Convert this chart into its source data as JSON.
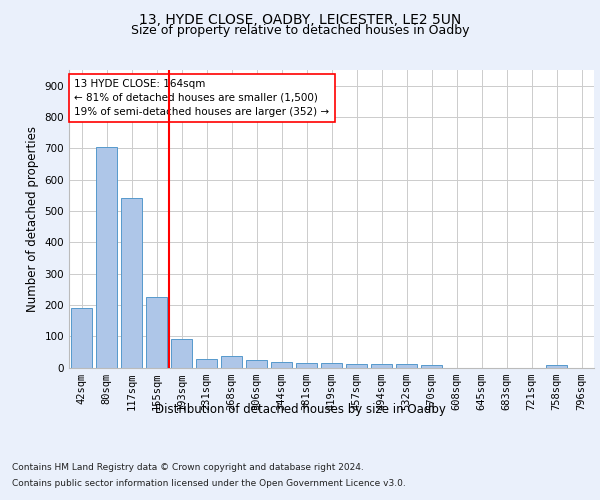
{
  "title": "13, HYDE CLOSE, OADBY, LEICESTER, LE2 5UN",
  "subtitle": "Size of property relative to detached houses in Oadby",
  "xlabel": "Distribution of detached houses by size in Oadby",
  "ylabel": "Number of detached properties",
  "categories": [
    "42sqm",
    "80sqm",
    "117sqm",
    "155sqm",
    "193sqm",
    "231sqm",
    "268sqm",
    "306sqm",
    "344sqm",
    "381sqm",
    "419sqm",
    "457sqm",
    "494sqm",
    "532sqm",
    "570sqm",
    "608sqm",
    "645sqm",
    "683sqm",
    "721sqm",
    "758sqm",
    "796sqm"
  ],
  "values": [
    190,
    705,
    540,
    225,
    90,
    28,
    37,
    24,
    16,
    14,
    14,
    11,
    10,
    10,
    7,
    0,
    0,
    0,
    0,
    9,
    0
  ],
  "bar_color": "#aec6e8",
  "bar_edge_color": "#5599cc",
  "vline_x_index": 3,
  "vline_color": "red",
  "annotation_text": "13 HYDE CLOSE: 164sqm\n← 81% of detached houses are smaller (1,500)\n19% of semi-detached houses are larger (352) →",
  "annotation_box_color": "white",
  "annotation_box_edge_color": "red",
  "ylim": [
    0,
    950
  ],
  "yticks": [
    0,
    100,
    200,
    300,
    400,
    500,
    600,
    700,
    800,
    900
  ],
  "bg_color": "#eaf0fb",
  "plot_bg_color": "white",
  "footer_line1": "Contains HM Land Registry data © Crown copyright and database right 2024.",
  "footer_line2": "Contains public sector information licensed under the Open Government Licence v3.0.",
  "title_fontsize": 10,
  "subtitle_fontsize": 9,
  "axis_label_fontsize": 8.5,
  "tick_fontsize": 7.5,
  "annotation_fontsize": 7.5,
  "footer_fontsize": 6.5
}
